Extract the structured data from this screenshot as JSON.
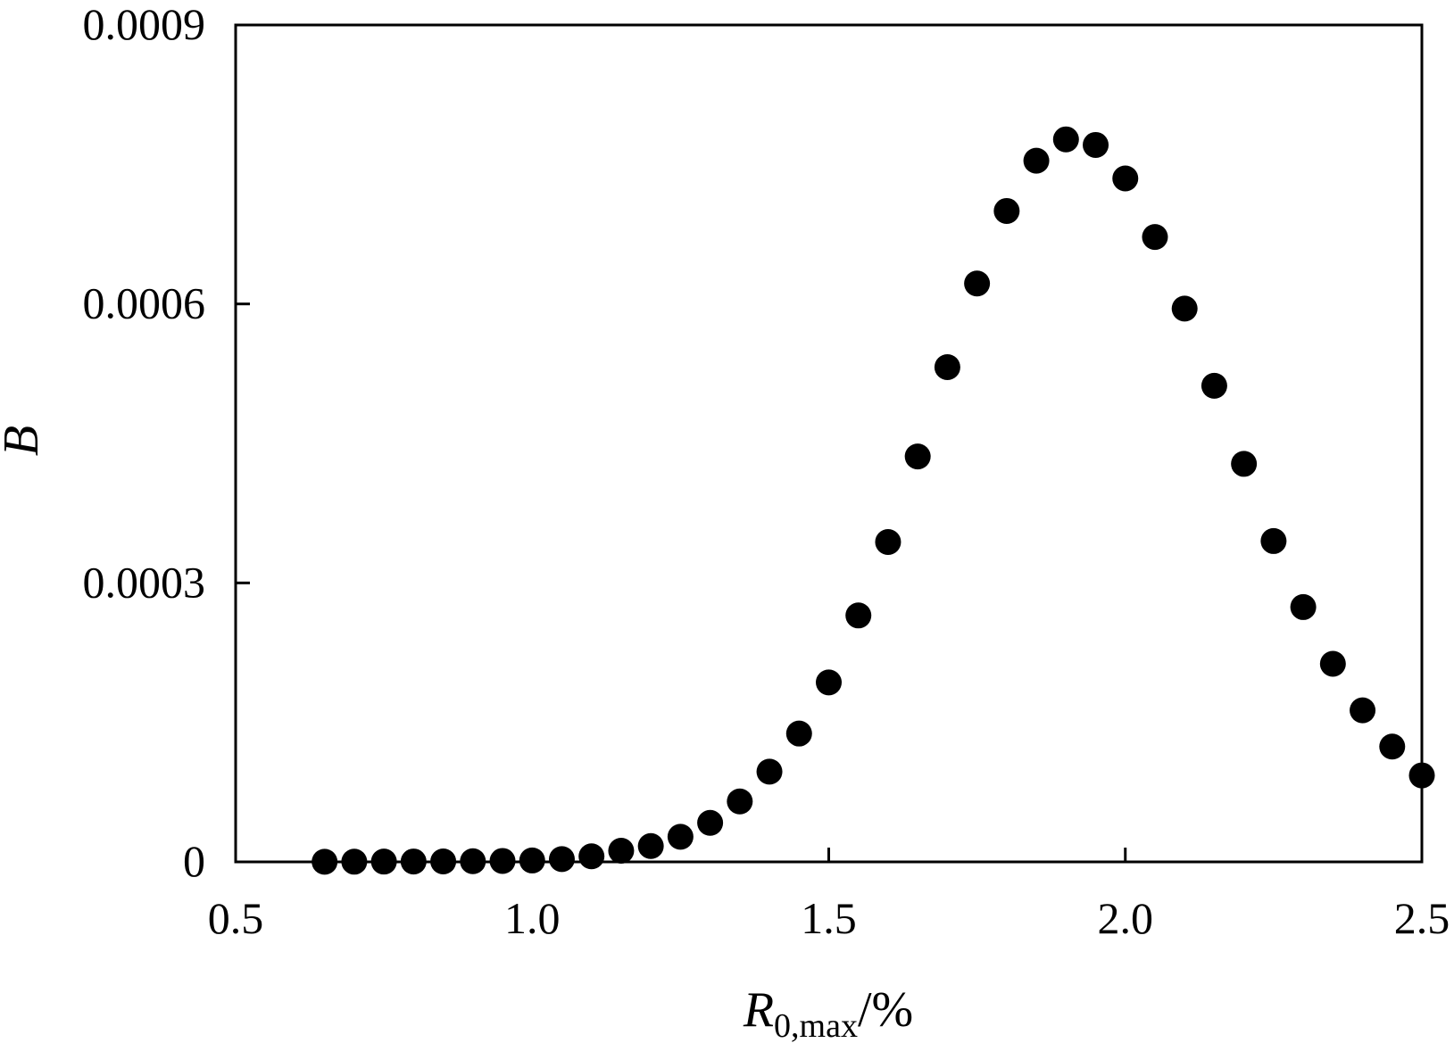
{
  "chart_data": {
    "type": "scatter",
    "xlabel": {
      "main": "R",
      "sub": "0,max",
      "unit": "/%"
    },
    "ylabel": "B",
    "xlim": [
      0.5,
      2.5
    ],
    "ylim": [
      0,
      0.0009
    ],
    "x_ticks": [
      "0.5",
      "1.0",
      "1.5",
      "2.0",
      "2.5"
    ],
    "y_ticks": [
      "0",
      "0.0003",
      "0.0006",
      "0.0009"
    ],
    "grid": false,
    "marker_color": "#000000",
    "series": [
      {
        "x": [
          0.65,
          0.7,
          0.75,
          0.8,
          0.85,
          0.9,
          0.95,
          1.0,
          1.05,
          1.1,
          1.15,
          1.2,
          1.25,
          1.3,
          1.35,
          1.4,
          1.45,
          1.5,
          1.55,
          1.6,
          1.65,
          1.7,
          1.75,
          1.8,
          1.85,
          1.9,
          1.95,
          2.0,
          2.05,
          2.1,
          2.15,
          2.2,
          2.25,
          2.3,
          2.35,
          2.4,
          2.45,
          2.5
        ],
        "y": [
          1e-07,
          2e-07,
          3e-07,
          4e-07,
          5e-07,
          7e-07,
          1e-06,
          1.5e-06,
          3e-06,
          6e-06,
          1.2e-05,
          1.7e-05,
          2.7e-05,
          4.2e-05,
          6.5e-05,
          9.7e-05,
          0.000138,
          0.000193,
          0.000265,
          0.000344,
          0.000436,
          0.000532,
          0.000622,
          0.0007,
          0.000754,
          0.000777,
          0.000771,
          0.000735,
          0.000672,
          0.000595,
          0.000512,
          0.000428,
          0.000345,
          0.000274,
          0.000213,
          0.000163,
          0.000124,
          9.3e-05
        ]
      }
    ]
  }
}
